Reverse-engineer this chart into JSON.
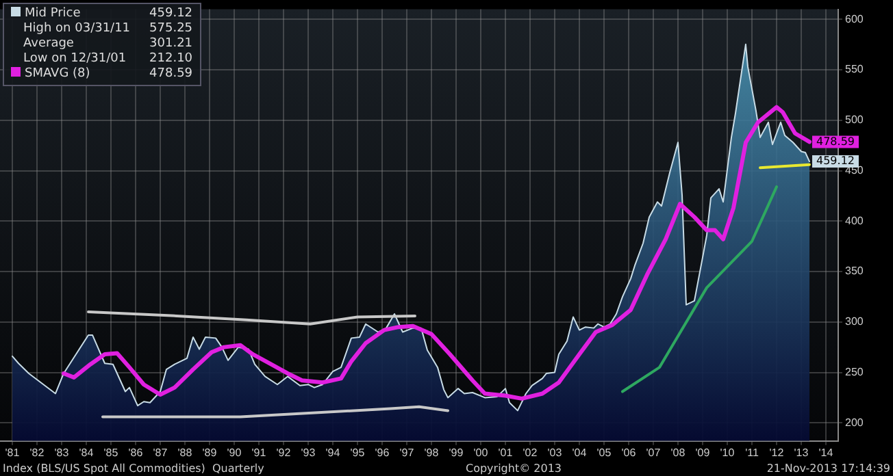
{
  "chart_data": {
    "type": "area",
    "title": "Index (BLS/US Spot All Commodities)  Quarterly",
    "annotations": [
      "High on 03/31/11 575.25",
      "Average 301.21",
      "Low on 12/31/01 212.10",
      "Copyright© 2013",
      "21-Nov-2013 17:14:39"
    ],
    "xlim": [
      "1981-01-01",
      "2015-01-01"
    ],
    "xticks": [
      {
        "value": "1981-07-01",
        "label": "'81"
      },
      {
        "value": "1982-07-01",
        "label": "'82"
      },
      {
        "value": "1983-07-01",
        "label": "'83"
      },
      {
        "value": "1984-07-01",
        "label": "'84"
      },
      {
        "value": "1985-07-01",
        "label": "'85"
      },
      {
        "value": "1986-07-01",
        "label": "'86"
      },
      {
        "value": "1987-07-01",
        "label": "'87"
      },
      {
        "value": "1988-07-01",
        "label": "'88"
      },
      {
        "value": "1989-07-01",
        "label": "'89"
      },
      {
        "value": "1990-07-01",
        "label": "'90"
      },
      {
        "value": "1991-07-01",
        "label": "'91"
      },
      {
        "value": "1992-07-01",
        "label": "'92"
      },
      {
        "value": "1993-07-01",
        "label": "'93"
      },
      {
        "value": "1994-07-01",
        "label": "'94"
      },
      {
        "value": "1995-07-01",
        "label": "'95"
      },
      {
        "value": "1996-07-01",
        "label": "'96"
      },
      {
        "value": "1997-07-01",
        "label": "'97"
      },
      {
        "value": "1998-07-01",
        "label": "'98"
      },
      {
        "value": "1999-07-01",
        "label": "'99"
      },
      {
        "value": "2000-07-01",
        "label": "'00"
      },
      {
        "value": "2001-07-01",
        "label": "'01"
      },
      {
        "value": "2002-07-01",
        "label": "'02"
      },
      {
        "value": "2003-07-01",
        "label": "'03"
      },
      {
        "value": "2004-07-01",
        "label": "'04"
      },
      {
        "value": "2005-07-01",
        "label": "'05"
      },
      {
        "value": "2006-07-01",
        "label": "'06"
      },
      {
        "value": "2007-07-01",
        "label": "'07"
      },
      {
        "value": "2008-07-01",
        "label": "'08"
      },
      {
        "value": "2009-07-01",
        "label": "'09"
      },
      {
        "value": "2010-07-01",
        "label": "'10"
      },
      {
        "value": "2011-07-01",
        "label": "'11"
      },
      {
        "value": "2012-07-01",
        "label": "'12"
      },
      {
        "value": "2013-07-01",
        "label": "'13"
      },
      {
        "value": "2014-07-01",
        "label": "'14"
      }
    ],
    "ylim": [
      182,
      610
    ],
    "yticks": [
      200,
      250,
      300,
      350,
      400,
      450,
      500,
      550,
      600
    ],
    "grid": true,
    "legend": "top left",
    "series": [
      {
        "name": "Mid Price",
        "color": "#c8dce6",
        "x": [
          "1981-07",
          "1981-10",
          "1982-03",
          "1983-04",
          "1983-08",
          "1984-02",
          "1984-08",
          "1984-10",
          "1985-04",
          "1985-08",
          "1986-02",
          "1986-04",
          "1986-08",
          "1986-11",
          "1987-02",
          "1987-07",
          "1987-10",
          "1988-02",
          "1988-08",
          "1988-11",
          "1989-02",
          "1989-05",
          "1989-10",
          "1990-01",
          "1990-04",
          "1990-09",
          "1991-02",
          "1991-05",
          "1991-10",
          "1992-04",
          "1992-09",
          "1993-03",
          "1993-07",
          "1993-10",
          "1994-02",
          "1994-07",
          "1994-11",
          "1995-04",
          "1995-08",
          "1995-11",
          "1996-05",
          "1996-09",
          "1997-01",
          "1997-05",
          "1997-10",
          "1998-02",
          "1998-05",
          "1998-10",
          "1999-01",
          "1999-03",
          "1999-08",
          "1999-11",
          "2000-03",
          "2000-09",
          "2001-03",
          "2001-07",
          "2001-09",
          "2001-12-31",
          "2002-05",
          "2002-08",
          "2003-01",
          "2003-03",
          "2003-07",
          "2003-09",
          "2004-01",
          "2004-04",
          "2004-07",
          "2004-10",
          "2005-02",
          "2005-04",
          "2005-07",
          "2005-10",
          "2006-01",
          "2006-04",
          "2006-08",
          "2006-10",
          "2007-02",
          "2007-05",
          "2007-09",
          "2007-11",
          "2008-03",
          "2008-07",
          "2008-09",
          "2008-11",
          "2009-03",
          "2009-07",
          "2009-09",
          "2009-11",
          "2010-03",
          "2010-05",
          "2010-09",
          "2010-11",
          "2011-03-31",
          "2011-05",
          "2011-09",
          "2011-11",
          "2012-03",
          "2012-05",
          "2012-09",
          "2012-11",
          "2013-03",
          "2013-07",
          "2013-09",
          "2013-11"
        ],
        "values": [
          266,
          259,
          249,
          229,
          249,
          268,
          287,
          287,
          259,
          258,
          231,
          235,
          217,
          221,
          220,
          231,
          253,
          258,
          264,
          285,
          273,
          285,
          284,
          275,
          262,
          275,
          273,
          258,
          246,
          238,
          246,
          237,
          238,
          235,
          238,
          251,
          255,
          284,
          285,
          298,
          290,
          294,
          308,
          290,
          294,
          294,
          272,
          255,
          233,
          225,
          234,
          229,
          230,
          225,
          226,
          234,
          220,
          212.1,
          229,
          237,
          244,
          249,
          250,
          268,
          281,
          305,
          292,
          295,
          294,
          298,
          295,
          298,
          308,
          325,
          343,
          356,
          378,
          404,
          419,
          415,
          448,
          478,
          426,
          317,
          321,
          364,
          386,
          423,
          432,
          419,
          483,
          507,
          575.25,
          553,
          509,
          483,
          498,
          476,
          498,
          485,
          478,
          469,
          468,
          459.12
        ],
        "value_labels": [
          null,
          null,
          null,
          null,
          null,
          null,
          null,
          null,
          null,
          null,
          null,
          null,
          null,
          null,
          null,
          null,
          null,
          null,
          null,
          null,
          null,
          null,
          null,
          null,
          null,
          null,
          null,
          null,
          null,
          null,
          null,
          null,
          null,
          null,
          null,
          null,
          null,
          null,
          null,
          null,
          null,
          null,
          null,
          null,
          null,
          null,
          null,
          null,
          null,
          null,
          null,
          null,
          null,
          null,
          null,
          null,
          null,
          null,
          null,
          null,
          null,
          null,
          null,
          null,
          null,
          null,
          null,
          null,
          null,
          null,
          null,
          null,
          null,
          null,
          null,
          null,
          null,
          null,
          null,
          null,
          null,
          null,
          null,
          null,
          null,
          null,
          null,
          null,
          null,
          null,
          null,
          null,
          null,
          null,
          null,
          null,
          null,
          null,
          null,
          null,
          null,
          null,
          null,
          "459.12"
        ]
      },
      {
        "name": "SMAVG (8)",
        "type": "line",
        "color": "#e020e0",
        "x": [
          "1983-08",
          "1984-01",
          "1984-09",
          "1985-04",
          "1985-10",
          "1986-04",
          "1986-11",
          "1987-07",
          "1988-02",
          "1988-11",
          "1989-08",
          "1990-02",
          "1990-10",
          "1991-04",
          "1992-01",
          "1992-09",
          "1993-04",
          "1994-02",
          "1994-11",
          "1995-04",
          "1995-11",
          "1996-08",
          "1997-03",
          "1997-10",
          "1998-07",
          "1999-04",
          "2000-03",
          "2000-09",
          "2001-07",
          "2002-03",
          "2003-01",
          "2003-09",
          "2004-07",
          "2005-03",
          "2005-11",
          "2006-08",
          "2007-04",
          "2008-01",
          "2008-08",
          "2009-03",
          "2009-09",
          "2010-01",
          "2010-05",
          "2010-10",
          "2011-04",
          "2011-10",
          "2012-07",
          "2012-10",
          "2013-04",
          "2013-11"
        ],
        "values": [
          249,
          245,
          258,
          268,
          269,
          255,
          238,
          228,
          235,
          253,
          270,
          275,
          277,
          268,
          258,
          249,
          242,
          240,
          244,
          261,
          279,
          292,
          295,
          296,
          288,
          268,
          242,
          229,
          227,
          224,
          229,
          240,
          268,
          290,
          297,
          312,
          347,
          382,
          417,
          404,
          391,
          391,
          382,
          413,
          478,
          498,
          513,
          508,
          487,
          478.59
        ],
        "value_labels": [
          null,
          null,
          null,
          null,
          null,
          null,
          null,
          null,
          null,
          null,
          null,
          null,
          null,
          null,
          null,
          null,
          null,
          null,
          null,
          null,
          null,
          null,
          null,
          null,
          null,
          null,
          null,
          null,
          null,
          null,
          null,
          null,
          null,
          null,
          null,
          null,
          null,
          null,
          null,
          null,
          null,
          null,
          null,
          null,
          null,
          null,
          null,
          null,
          null,
          "478.59"
        ]
      },
      {
        "type": "line",
        "color": "#c8c8c8",
        "x": [
          "1984-08",
          "1988-03",
          "1991-01",
          "1993-08",
          "1995-07",
          "1997-11"
        ],
        "values": [
          310,
          306,
          302,
          298,
          305,
          306
        ]
      },
      {
        "type": "line",
        "color": "#c8c8c8",
        "x": [
          "1985-03",
          "1990-10",
          "1996-11",
          "1998-01",
          "1999-03"
        ],
        "values": [
          206,
          206,
          214,
          216,
          212
        ]
      },
      {
        "type": "line",
        "color": "#2ea860",
        "x": [
          "2006-04",
          "2007-10",
          "2009-09",
          "2011-07",
          "2012-07"
        ],
        "values": [
          231,
          255,
          334,
          380,
          434
        ]
      },
      {
        "type": "line",
        "color": "#e8e830",
        "x": [
          "2011-11",
          "2013-11"
        ],
        "values": [
          453,
          456
        ]
      }
    ]
  }
}
